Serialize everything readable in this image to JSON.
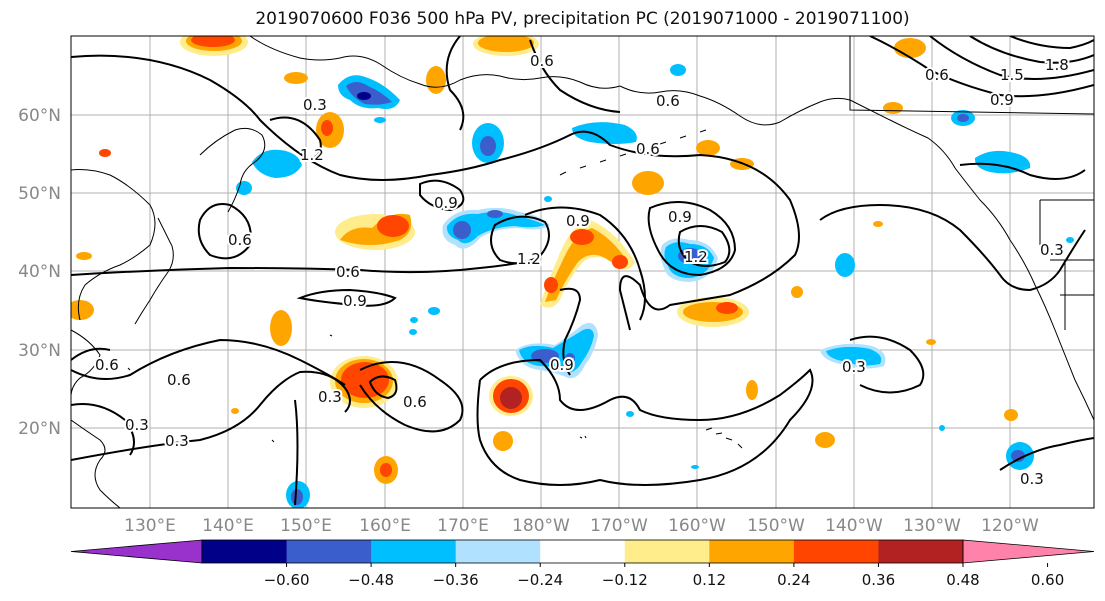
{
  "title": "2019070600 F036 500 hPa PV, precipitation PC (2019071000 - 2019071100)",
  "map": {
    "lat_labels": [
      "60°N",
      "50°N",
      "40°N",
      "30°N",
      "20°N"
    ],
    "lon_labels": [
      "130°E",
      "140°E",
      "150°E",
      "160°E",
      "170°E",
      "180°W",
      "170°W",
      "160°W",
      "150°W",
      "140°W",
      "130°W",
      "120°W"
    ],
    "label_color": "#888888",
    "gridline_color": "#b0b0b0",
    "contour_labels": [
      "0.3",
      "0.6",
      "0.9",
      "1.2",
      "1.5",
      "1.8"
    ]
  },
  "colorbar": {
    "colors": [
      "#9932cc",
      "#000088",
      "#3a5fcd",
      "#00bfff",
      "#b0e2ff",
      "#ffffff",
      "#ffec8b",
      "#ffa500",
      "#ff4500",
      "#b22222",
      "#ff82ab"
    ],
    "tick_labels": [
      "−0.60",
      "−0.48",
      "−0.36",
      "−0.24",
      "−0.12",
      "0.12",
      "0.24",
      "0.36",
      "0.48",
      "0.60"
    ]
  }
}
